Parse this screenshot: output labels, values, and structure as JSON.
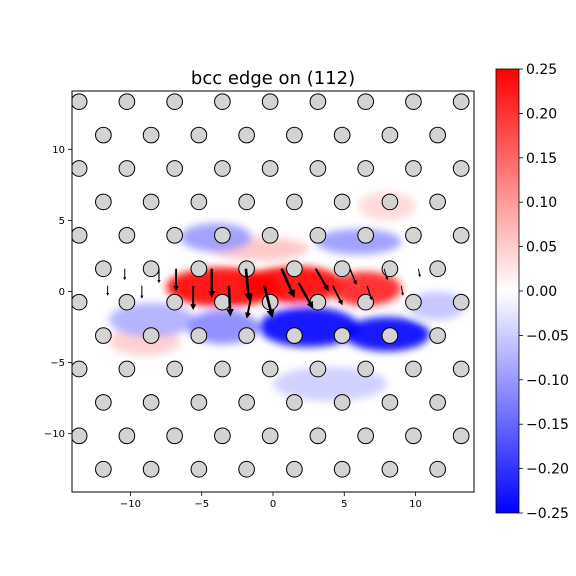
{
  "chart_data": {
    "type": "heatmap",
    "title": "bcc edge on (112)",
    "xlabel": "",
    "ylabel": "",
    "xlim": [
      -14.1,
      14.1
    ],
    "ylim": [
      -14.1,
      14.1
    ],
    "xticks": [
      -10,
      -5,
      0,
      5,
      10
    ],
    "yticks": [
      -10,
      -5,
      0,
      5,
      10
    ],
    "grid": false,
    "colormap": "bwr",
    "colorbar": {
      "vmin": -0.25,
      "vmax": 0.25,
      "ticks": [
        "0.25",
        "0.20",
        "0.15",
        "0.10",
        "0.05",
        "0.00",
        "−0.05",
        "−0.10",
        "−0.15",
        "−0.20",
        "−0.25"
      ],
      "tick_values": [
        0.25,
        0.2,
        0.15,
        0.1,
        0.05,
        0.0,
        -0.05,
        -0.1,
        -0.15,
        -0.2,
        -0.25
      ]
    },
    "colors": {
      "positive": "#ff0000",
      "negative": "#0000ff",
      "zero": "#ffffff",
      "atom_fill": "#d3d3d3",
      "atom_edge": "#000000"
    },
    "atoms": {
      "row_spacing": 2.35,
      "col_spacing": 3.35,
      "row_shift": 1.65,
      "y_origin": 1.6,
      "x_origin": 1.5,
      "radius": 0.55
    },
    "strain_field": [
      {
        "x": -3.5,
        "y": 0.3,
        "sx": 4.0,
        "sy": 1.4,
        "value": 0.25
      },
      {
        "x": 1.5,
        "y": 0.5,
        "sx": 3.5,
        "sy": 1.3,
        "value": 0.25
      },
      {
        "x": 6.5,
        "y": 0.2,
        "sx": 2.5,
        "sy": 1.2,
        "value": 0.22
      },
      {
        "x": -1.0,
        "y": 3.0,
        "sx": 3.5,
        "sy": 0.8,
        "value": 0.06
      },
      {
        "x": 8.0,
        "y": 6.0,
        "sx": 2.0,
        "sy": 1.0,
        "value": 0.04
      },
      {
        "x": -9.0,
        "y": -3.5,
        "sx": 2.5,
        "sy": 1.0,
        "value": 0.05
      },
      {
        "x": -4.0,
        "y": 3.8,
        "sx": 2.5,
        "sy": 1.0,
        "value": -0.1
      },
      {
        "x": -8.5,
        "y": -2.0,
        "sx": 3.0,
        "sy": 1.2,
        "value": -0.08
      },
      {
        "x": 2.5,
        "y": -2.5,
        "sx": 3.5,
        "sy": 1.4,
        "value": -0.25
      },
      {
        "x": 8.0,
        "y": -3.0,
        "sx": 3.0,
        "sy": 1.2,
        "value": -0.25
      },
      {
        "x": -3.5,
        "y": -2.5,
        "sx": 2.5,
        "sy": 1.2,
        "value": -0.12
      },
      {
        "x": 6.0,
        "y": 3.5,
        "sx": 3.0,
        "sy": 0.9,
        "value": -0.1
      },
      {
        "x": 4.0,
        "y": -6.5,
        "sx": 4.0,
        "sy": 1.2,
        "value": -0.05
      },
      {
        "x": 11.5,
        "y": -1.0,
        "sx": 2.0,
        "sy": 1.0,
        "value": -0.06
      }
    ],
    "displacements": [
      {
        "x": -6.8,
        "y": 1.6,
        "dx": 0.0,
        "dy": -1.4
      },
      {
        "x": -5.6,
        "y": 0.4,
        "dx": 0.0,
        "dy": -1.5
      },
      {
        "x": -4.3,
        "y": 1.6,
        "dx": 0.0,
        "dy": -1.8
      },
      {
        "x": -3.1,
        "y": 0.4,
        "dx": 0.1,
        "dy": -1.9
      },
      {
        "x": -1.9,
        "y": 1.6,
        "dx": 0.2,
        "dy": -2.0
      },
      {
        "x": -0.6,
        "y": 0.4,
        "dx": 0.5,
        "dy": -2.0
      },
      {
        "x": 0.6,
        "y": 1.6,
        "dx": 0.8,
        "dy": -1.8
      },
      {
        "x": 1.8,
        "y": 0.6,
        "dx": 0.9,
        "dy": -1.6
      },
      {
        "x": 3.0,
        "y": 1.6,
        "dx": 0.8,
        "dy": -1.4
      },
      {
        "x": 4.2,
        "y": 0.4,
        "dx": 0.6,
        "dy": -1.2
      },
      {
        "x": 5.4,
        "y": 1.6,
        "dx": 0.4,
        "dy": -1.0
      },
      {
        "x": 6.6,
        "y": 0.4,
        "dx": 0.3,
        "dy": -0.9
      },
      {
        "x": -1.5,
        "y": -0.2,
        "dx": -0.3,
        "dy": -1.5
      },
      {
        "x": -8.0,
        "y": 1.6,
        "dx": 0.0,
        "dy": -0.9
      },
      {
        "x": -9.2,
        "y": 0.4,
        "dx": 0.0,
        "dy": -0.8
      },
      {
        "x": -10.4,
        "y": 1.6,
        "dx": 0.0,
        "dy": -0.7
      },
      {
        "x": -11.6,
        "y": 0.4,
        "dx": 0.0,
        "dy": -0.6
      },
      {
        "x": 7.8,
        "y": 1.6,
        "dx": 0.2,
        "dy": -0.7
      },
      {
        "x": 9.0,
        "y": 0.4,
        "dx": 0.1,
        "dy": -0.6
      },
      {
        "x": 10.2,
        "y": 1.6,
        "dx": 0.1,
        "dy": -0.5
      }
    ]
  }
}
